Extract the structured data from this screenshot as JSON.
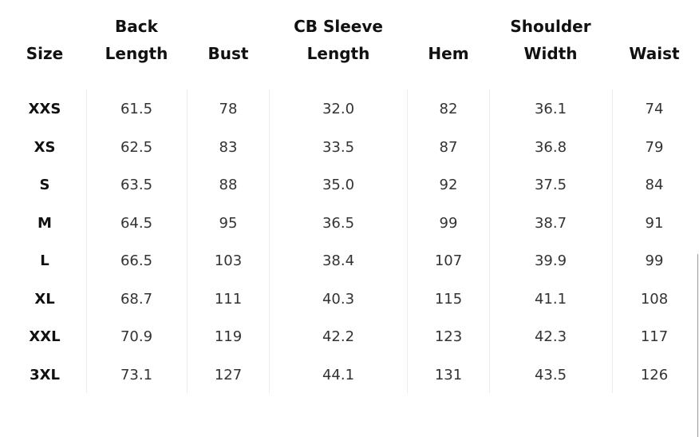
{
  "table": {
    "headers": [
      {
        "line1": "",
        "line2": "Size"
      },
      {
        "line1": "Back",
        "line2": "Length"
      },
      {
        "line1": "",
        "line2": "Bust"
      },
      {
        "line1": "CB Sleeve",
        "line2": "Length"
      },
      {
        "line1": "",
        "line2": "Hem"
      },
      {
        "line1": "Shoulder",
        "line2": "Width"
      },
      {
        "line1": "",
        "line2": "Waist"
      }
    ],
    "rows": [
      [
        "XXS",
        "61.5",
        "78",
        "32.0",
        "82",
        "36.1",
        "74"
      ],
      [
        "XS",
        "62.5",
        "83",
        "33.5",
        "87",
        "36.8",
        "79"
      ],
      [
        "S",
        "63.5",
        "88",
        "35.0",
        "92",
        "37.5",
        "84"
      ],
      [
        "M",
        "64.5",
        "95",
        "36.5",
        "99",
        "38.7",
        "91"
      ],
      [
        "L",
        "66.5",
        "103",
        "38.4",
        "107",
        "39.9",
        "99"
      ],
      [
        "XL",
        "68.7",
        "111",
        "40.3",
        "115",
        "41.1",
        "108"
      ],
      [
        "XXL",
        "70.9",
        "119",
        "42.2",
        "123",
        "42.3",
        "117"
      ],
      [
        "3XL",
        "73.1",
        "127",
        "44.1",
        "131",
        "43.5",
        "126"
      ]
    ]
  },
  "colors": {
    "text": "#333333",
    "header_text": "#111111",
    "divider": "#ececec",
    "background": "#ffffff"
  }
}
